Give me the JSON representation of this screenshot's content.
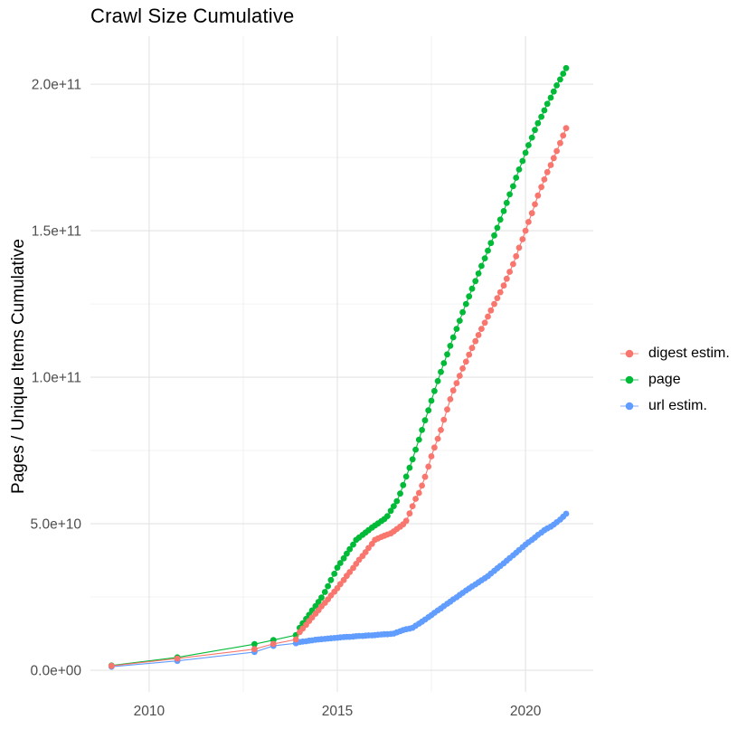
{
  "title": "Crawl Size Cumulative",
  "chart_data": {
    "type": "scatter",
    "title": "Crawl Size Cumulative",
    "xlabel": "",
    "ylabel": "Pages / Unique Items Cumulative",
    "y_unit": "1e9 (values below are billions of pages / unique items)",
    "xlim": [
      2008.44,
      2021.8
    ],
    "ylim": [
      -7.4,
      216.4
    ],
    "grid": true,
    "background": "#ffffff",
    "grid_major_color": "#e3e3e3",
    "grid_minor_color": "#f0f0f0",
    "axis_text_color": "#4d4d4d",
    "legend_position": "right",
    "x_ticks": {
      "values": [
        2010,
        2015,
        2020
      ],
      "labels": [
        "2010",
        "2015",
        "2020"
      ]
    },
    "x_minor_ticks": [
      2012.5,
      2017.5
    ],
    "y_ticks": {
      "values": [
        0,
        50,
        100,
        150,
        200
      ],
      "labels": [
        "0.0e+00",
        "5.0e+10",
        "1.0e+11",
        "1.5e+11",
        "2.0e+11"
      ]
    },
    "y_minor_ticks": [
      25,
      75,
      125,
      175
    ],
    "series": [
      {
        "name": "digest estim.",
        "color": "#F8766D",
        "points": [
          [
            2009,
            1.5
          ],
          [
            2010.75,
            4
          ],
          [
            2012.8,
            7.2
          ],
          [
            2013.3,
            9
          ],
          [
            2013.9,
            10.5
          ],
          [
            2014,
            13
          ],
          [
            2014.08,
            14.2
          ],
          [
            2014.17,
            15.5
          ],
          [
            2014.25,
            16.8
          ],
          [
            2014.33,
            18
          ],
          [
            2014.42,
            19.3
          ],
          [
            2014.5,
            20.5
          ],
          [
            2014.58,
            21.8
          ],
          [
            2014.67,
            23
          ],
          [
            2014.75,
            24.2
          ],
          [
            2014.83,
            25.5
          ],
          [
            2014.92,
            26.8
          ],
          [
            2015,
            28
          ],
          [
            2015.08,
            29.4
          ],
          [
            2015.17,
            30.8
          ],
          [
            2015.25,
            32.2
          ],
          [
            2015.33,
            33.5
          ],
          [
            2015.42,
            34.9
          ],
          [
            2015.5,
            36.3
          ],
          [
            2015.58,
            37.7
          ],
          [
            2015.67,
            39
          ],
          [
            2015.75,
            40.3
          ],
          [
            2015.83,
            41.7
          ],
          [
            2015.92,
            43.1
          ],
          [
            2016,
            44.5
          ],
          [
            2016.08,
            45
          ],
          [
            2016.17,
            45.5
          ],
          [
            2016.25,
            45.9
          ],
          [
            2016.33,
            46.3
          ],
          [
            2016.42,
            46.7
          ],
          [
            2016.5,
            47.4
          ],
          [
            2016.58,
            48.2
          ],
          [
            2016.67,
            49
          ],
          [
            2016.75,
            49.8
          ],
          [
            2016.83,
            51
          ],
          [
            2016.92,
            53.5
          ],
          [
            2017,
            56
          ],
          [
            2017.08,
            58.5
          ],
          [
            2017.17,
            60.5
          ],
          [
            2017.25,
            63
          ],
          [
            2017.33,
            66
          ],
          [
            2017.42,
            69.5
          ],
          [
            2017.5,
            73
          ],
          [
            2017.58,
            76
          ],
          [
            2017.67,
            79
          ],
          [
            2017.75,
            82
          ],
          [
            2017.83,
            85.5
          ],
          [
            2017.92,
            89
          ],
          [
            2018,
            92.5
          ],
          [
            2018.08,
            95.5
          ],
          [
            2018.17,
            98
          ],
          [
            2018.25,
            100.5
          ],
          [
            2018.33,
            103
          ],
          [
            2018.42,
            105.3
          ],
          [
            2018.5,
            107.7
          ],
          [
            2018.58,
            110
          ],
          [
            2018.67,
            112.3
          ],
          [
            2018.75,
            114.4
          ],
          [
            2018.83,
            116.5
          ],
          [
            2018.92,
            118.6
          ],
          [
            2019,
            120.7
          ],
          [
            2019.08,
            122.8
          ],
          [
            2019.17,
            125
          ],
          [
            2019.25,
            127
          ],
          [
            2019.33,
            129
          ],
          [
            2019.42,
            131.3
          ],
          [
            2019.5,
            133.6
          ],
          [
            2019.58,
            136
          ],
          [
            2019.67,
            138.6
          ],
          [
            2019.75,
            141.3
          ],
          [
            2019.83,
            144.2
          ],
          [
            2019.92,
            147.1
          ],
          [
            2020,
            150
          ],
          [
            2020.08,
            153
          ],
          [
            2020.17,
            156
          ],
          [
            2020.25,
            159
          ],
          [
            2020.33,
            162
          ],
          [
            2020.42,
            164.9
          ],
          [
            2020.5,
            167.5
          ],
          [
            2020.58,
            170
          ],
          [
            2020.67,
            172.4
          ],
          [
            2020.75,
            174.8
          ],
          [
            2020.83,
            177.2
          ],
          [
            2020.92,
            179.9
          ],
          [
            2021,
            182.5
          ],
          [
            2021.08,
            185
          ]
        ]
      },
      {
        "name": "page",
        "color": "#00BA38",
        "points": [
          [
            2009,
            1.6
          ],
          [
            2010.75,
            4.4
          ],
          [
            2012.8,
            8.9
          ],
          [
            2013.3,
            10.3
          ],
          [
            2013.9,
            12
          ],
          [
            2014,
            14.5
          ],
          [
            2014.08,
            16
          ],
          [
            2014.17,
            17.5
          ],
          [
            2014.25,
            18.9
          ],
          [
            2014.33,
            20.4
          ],
          [
            2014.42,
            21.9
          ],
          [
            2014.5,
            23.3
          ],
          [
            2014.58,
            24.8
          ],
          [
            2014.67,
            26.7
          ],
          [
            2014.75,
            28.7
          ],
          [
            2014.83,
            30.8
          ],
          [
            2014.92,
            32.9
          ],
          [
            2015,
            35
          ],
          [
            2015.08,
            36.6
          ],
          [
            2015.17,
            38.2
          ],
          [
            2015.25,
            39.8
          ],
          [
            2015.33,
            41.3
          ],
          [
            2015.42,
            42.9
          ],
          [
            2015.5,
            44.5
          ],
          [
            2015.58,
            45.3
          ],
          [
            2015.67,
            46.2
          ],
          [
            2015.75,
            47
          ],
          [
            2015.83,
            47.8
          ],
          [
            2015.92,
            48.7
          ],
          [
            2016,
            49.4
          ],
          [
            2016.08,
            50.1
          ],
          [
            2016.17,
            50.9
          ],
          [
            2016.25,
            51.6
          ],
          [
            2016.33,
            52.6
          ],
          [
            2016.42,
            54.4
          ],
          [
            2016.5,
            56
          ],
          [
            2016.58,
            57.7
          ],
          [
            2016.67,
            60.3
          ],
          [
            2016.75,
            63.2
          ],
          [
            2016.83,
            66.1
          ],
          [
            2016.92,
            69.1
          ],
          [
            2017,
            72
          ],
          [
            2017.08,
            75.3
          ],
          [
            2017.17,
            78.7
          ],
          [
            2017.25,
            82
          ],
          [
            2017.33,
            85.3
          ],
          [
            2017.42,
            88.7
          ],
          [
            2017.5,
            92
          ],
          [
            2017.58,
            95.3
          ],
          [
            2017.67,
            98.7
          ],
          [
            2017.75,
            101.8
          ],
          [
            2017.83,
            104.8
          ],
          [
            2017.92,
            107.8
          ],
          [
            2018,
            110.7
          ],
          [
            2018.08,
            113.6
          ],
          [
            2018.17,
            116.5
          ],
          [
            2018.25,
            119.3
          ],
          [
            2018.33,
            122.2
          ],
          [
            2018.42,
            125
          ],
          [
            2018.5,
            127.6
          ],
          [
            2018.58,
            130.2
          ],
          [
            2018.67,
            132.8
          ],
          [
            2018.75,
            135.4
          ],
          [
            2018.83,
            138
          ],
          [
            2018.92,
            140.6
          ],
          [
            2019,
            143.2
          ],
          [
            2019.08,
            145.8
          ],
          [
            2019.17,
            148.4
          ],
          [
            2019.25,
            151
          ],
          [
            2019.33,
            153.8
          ],
          [
            2019.42,
            156.7
          ],
          [
            2019.5,
            159.5
          ],
          [
            2019.58,
            162.4
          ],
          [
            2019.67,
            165.2
          ],
          [
            2019.75,
            168.1
          ],
          [
            2019.83,
            170.9
          ],
          [
            2019.92,
            173.8
          ],
          [
            2020,
            176.6
          ],
          [
            2020.08,
            179.2
          ],
          [
            2020.17,
            181.8
          ],
          [
            2020.25,
            184.4
          ],
          [
            2020.33,
            186.7
          ],
          [
            2020.42,
            188.9
          ],
          [
            2020.5,
            191.1
          ],
          [
            2020.58,
            193.3
          ],
          [
            2020.67,
            195.4
          ],
          [
            2020.75,
            197.5
          ],
          [
            2020.83,
            199.6
          ],
          [
            2020.92,
            201.6
          ],
          [
            2021,
            203.6
          ],
          [
            2021.08,
            205.5
          ]
        ]
      },
      {
        "name": "url estim.",
        "color": "#619CFF",
        "points": [
          [
            2009,
            1.2
          ],
          [
            2010.75,
            3.2
          ],
          [
            2012.8,
            6.2
          ],
          [
            2013.3,
            8.3
          ],
          [
            2013.9,
            9.2
          ],
          [
            2014,
            9.6
          ],
          [
            2014.08,
            9.8
          ],
          [
            2014.17,
            9.9
          ],
          [
            2014.25,
            10.1
          ],
          [
            2014.33,
            10.2
          ],
          [
            2014.42,
            10.4
          ],
          [
            2014.5,
            10.5
          ],
          [
            2014.58,
            10.6
          ],
          [
            2014.67,
            10.7
          ],
          [
            2014.75,
            10.8
          ],
          [
            2014.83,
            10.9
          ],
          [
            2014.92,
            11
          ],
          [
            2015,
            11.1
          ],
          [
            2015.08,
            11.2
          ],
          [
            2015.17,
            11.3
          ],
          [
            2015.25,
            11.4
          ],
          [
            2015.33,
            11.4
          ],
          [
            2015.42,
            11.5
          ],
          [
            2015.5,
            11.6
          ],
          [
            2015.58,
            11.7
          ],
          [
            2015.67,
            11.7
          ],
          [
            2015.75,
            11.8
          ],
          [
            2015.83,
            11.9
          ],
          [
            2015.92,
            11.9
          ],
          [
            2016,
            12
          ],
          [
            2016.08,
            12.1
          ],
          [
            2016.17,
            12.2
          ],
          [
            2016.25,
            12.3
          ],
          [
            2016.33,
            12.3
          ],
          [
            2016.42,
            12.4
          ],
          [
            2016.5,
            12.5
          ],
          [
            2016.58,
            12.9
          ],
          [
            2016.67,
            13.3
          ],
          [
            2016.75,
            13.7
          ],
          [
            2016.83,
            14
          ],
          [
            2016.92,
            14.2
          ],
          [
            2017,
            14.5
          ],
          [
            2017.08,
            15.2
          ],
          [
            2017.17,
            15.9
          ],
          [
            2017.25,
            16.6
          ],
          [
            2017.33,
            17.3
          ],
          [
            2017.42,
            18.1
          ],
          [
            2017.5,
            18.8
          ],
          [
            2017.58,
            19.6
          ],
          [
            2017.67,
            20.4
          ],
          [
            2017.75,
            21.1
          ],
          [
            2017.83,
            21.9
          ],
          [
            2017.92,
            22.7
          ],
          [
            2018,
            23.4
          ],
          [
            2018.08,
            24.2
          ],
          [
            2018.17,
            24.9
          ],
          [
            2018.25,
            25.7
          ],
          [
            2018.33,
            26.4
          ],
          [
            2018.42,
            27.2
          ],
          [
            2018.5,
            27.9
          ],
          [
            2018.58,
            28.6
          ],
          [
            2018.67,
            29.3
          ],
          [
            2018.75,
            30
          ],
          [
            2018.83,
            30.7
          ],
          [
            2018.92,
            31.4
          ],
          [
            2019,
            32.1
          ],
          [
            2019.08,
            33
          ],
          [
            2019.17,
            33.9
          ],
          [
            2019.25,
            34.8
          ],
          [
            2019.33,
            35.6
          ],
          [
            2019.42,
            36.5
          ],
          [
            2019.5,
            37.4
          ],
          [
            2019.58,
            38.3
          ],
          [
            2019.67,
            39.2
          ],
          [
            2019.75,
            40.1
          ],
          [
            2019.83,
            41
          ],
          [
            2019.92,
            42
          ],
          [
            2020,
            42.9
          ],
          [
            2020.08,
            43.7
          ],
          [
            2020.17,
            44.5
          ],
          [
            2020.25,
            45.3
          ],
          [
            2020.33,
            46.2
          ],
          [
            2020.42,
            47
          ],
          [
            2020.5,
            47.8
          ],
          [
            2020.58,
            48.4
          ],
          [
            2020.67,
            49
          ],
          [
            2020.75,
            49.7
          ],
          [
            2020.83,
            50.5
          ],
          [
            2020.92,
            51.4
          ],
          [
            2021,
            52.4
          ],
          [
            2021.08,
            53.4
          ]
        ]
      }
    ]
  }
}
